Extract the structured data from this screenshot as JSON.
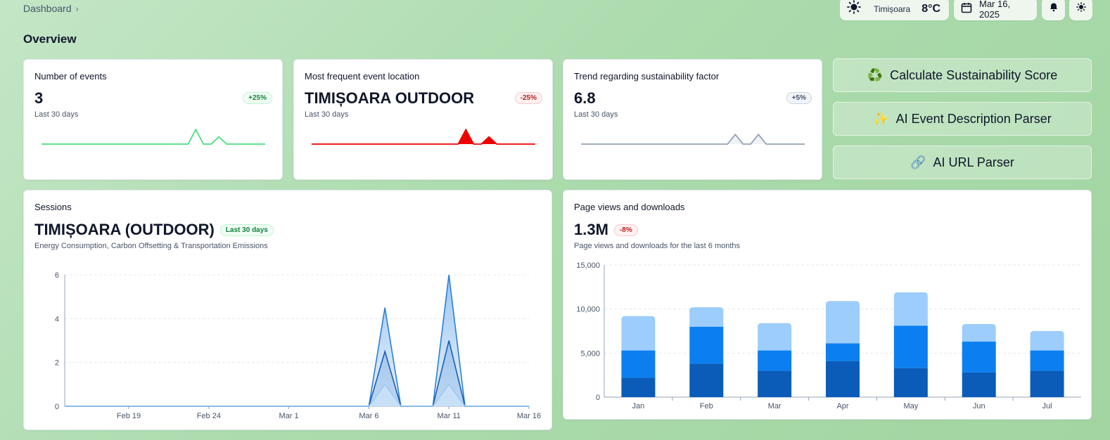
{
  "breadcrumb": {
    "label": "Dashboard",
    "chevron": "›"
  },
  "weather": {
    "icon": "sun-icon",
    "city": "Timișoara",
    "temp": "8°C"
  },
  "date": {
    "icon": "calendar-icon",
    "value": "Mar 16, 2025"
  },
  "header_icons": {
    "bell": "bell-icon",
    "theme": "sun-icon"
  },
  "page_title": "Overview",
  "kpis": [
    {
      "title": "Number of events",
      "value": "3",
      "badge": "+25%",
      "sub": "Last 30 days",
      "color": "#4ade80",
      "spark": [
        0,
        0,
        0,
        0,
        0,
        0,
        0,
        0,
        0,
        0,
        0,
        0,
        0,
        0,
        0,
        0,
        0,
        0,
        0,
        0,
        3,
        0,
        0,
        1.5,
        0,
        0,
        0,
        0,
        0,
        0
      ]
    },
    {
      "title": "Most frequent event location",
      "value": "TIMIȘOARA OUTDOOR",
      "badge": "-25%",
      "sub": "Last 30 days",
      "color": "#ef0000",
      "spark": [
        0,
        0,
        0,
        0,
        0,
        0,
        0,
        0,
        0,
        0,
        0,
        0,
        0,
        0,
        0,
        0,
        0,
        0,
        0,
        0,
        3,
        0,
        0,
        1.5,
        0,
        0,
        0,
        0,
        0,
        0
      ]
    },
    {
      "title": "Trend regarding sustainability factor",
      "value": "6.8",
      "badge": "+5%",
      "sub": "Last 30 days",
      "color": "#94a3b8",
      "spark": [
        0,
        0,
        0,
        0,
        0,
        0,
        0,
        0,
        0,
        0,
        0,
        0,
        0,
        0,
        0,
        0,
        0,
        0,
        0,
        0,
        2,
        0,
        0,
        2,
        0,
        0,
        0,
        0,
        0,
        0
      ]
    }
  ],
  "actions": [
    {
      "emoji": "♻️",
      "label": "Calculate Sustainability Score"
    },
    {
      "emoji": "✨",
      "label": "AI Event Description Parser"
    },
    {
      "emoji": "🔗",
      "label": "AI URL Parser"
    }
  ],
  "sessions": {
    "title": "Sessions",
    "value": "TIMIȘOARA (OUTDOOR)",
    "badge": "Last 30 days",
    "desc": "Energy Consumption, Carbon Offsetting & Transportation Emissions"
  },
  "pageviews": {
    "title": "Page views and downloads",
    "value": "1.3M",
    "badge": "-8%",
    "desc": "Page views and downloads for the last 6 months"
  },
  "chart_data": [
    {
      "type": "area",
      "x_labels": [
        "Feb 19",
        "Feb 24",
        "Mar 1",
        "Mar 6",
        "Mar 11",
        "Mar 16"
      ],
      "ylim": [
        0,
        6
      ],
      "y_ticks": [
        0,
        2,
        4,
        6
      ],
      "x": [
        "Feb 15",
        "Feb 16",
        "Feb 17",
        "Feb 18",
        "Feb 19",
        "Feb 20",
        "Feb 21",
        "Feb 22",
        "Feb 23",
        "Feb 24",
        "Feb 25",
        "Feb 26",
        "Feb 27",
        "Feb 28",
        "Mar 1",
        "Mar 2",
        "Mar 3",
        "Mar 4",
        "Mar 5",
        "Mar 6",
        "Mar 7",
        "Mar 8",
        "Mar 9",
        "Mar 10",
        "Mar 11",
        "Mar 12",
        "Mar 13",
        "Mar 14",
        "Mar 15",
        "Mar 16"
      ],
      "series": [
        {
          "values": [
            0,
            0,
            0,
            0,
            0,
            0,
            0,
            0,
            0,
            0,
            0,
            0,
            0,
            0,
            0,
            0,
            0,
            0,
            0,
            0,
            4.5,
            0,
            0,
            0,
            6,
            0,
            0,
            0,
            0,
            0
          ],
          "color": "#2b7fd8"
        },
        {
          "values": [
            0,
            0,
            0,
            0,
            0,
            0,
            0,
            0,
            0,
            0,
            0,
            0,
            0,
            0,
            0,
            0,
            0,
            0,
            0,
            0,
            2.5,
            0,
            0,
            0,
            3,
            0,
            0,
            0,
            0,
            0
          ],
          "color": "#1a5fb4"
        },
        {
          "values": [
            0,
            0,
            0,
            0,
            0,
            0,
            0,
            0,
            0,
            0,
            0,
            0,
            0,
            0,
            0,
            0,
            0,
            0,
            0,
            0,
            1,
            0,
            0,
            0,
            1,
            0,
            0,
            0,
            0,
            0
          ],
          "color": "#9cc8f2"
        }
      ],
      "grid": true
    },
    {
      "type": "bar",
      "stacked": true,
      "categories": [
        "Jan",
        "Feb",
        "Mar",
        "Apr",
        "May",
        "Jun",
        "Jul"
      ],
      "ylim": [
        0,
        15000
      ],
      "y_ticks": [
        0,
        5000,
        10000,
        15000
      ],
      "y_tick_labels": [
        "0",
        "5,000",
        "10,000",
        "15,000"
      ],
      "series": [
        {
          "values": [
            2200,
            3800,
            3000,
            4100,
            3300,
            2800,
            3000
          ],
          "color": "#0a5cb8"
        },
        {
          "values": [
            3100,
            4200,
            2300,
            2000,
            4800,
            3500,
            2300
          ],
          "color": "#0b7ff0"
        },
        {
          "values": [
            3900,
            2200,
            3100,
            4800,
            3800,
            2000,
            2200
          ],
          "color": "#9ccdfc"
        }
      ],
      "grid": true
    }
  ]
}
